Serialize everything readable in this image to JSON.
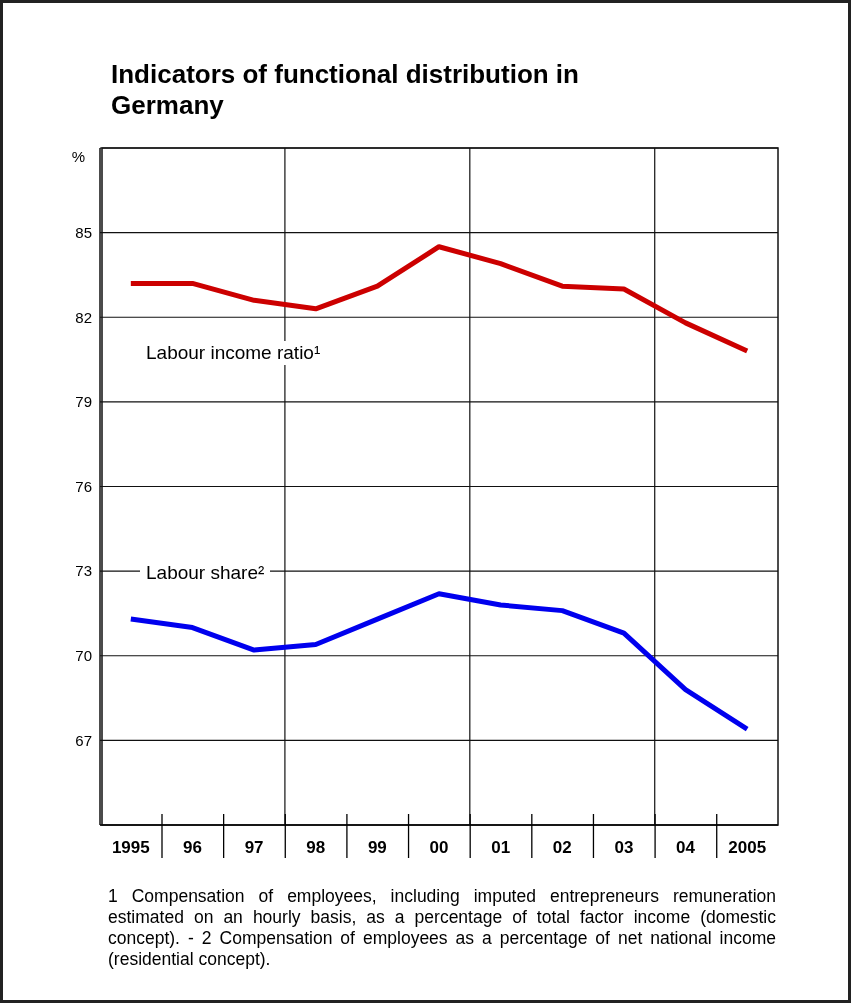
{
  "chart_data": {
    "type": "line",
    "title": "Indicators of functional distribution in Germany",
    "ylabel": "%",
    "categories": [
      "1995",
      "96",
      "97",
      "98",
      "99",
      "00",
      "01",
      "02",
      "03",
      "04",
      "2005"
    ],
    "series": [
      {
        "name": "Labour income ratio¹",
        "color": "#cc0000",
        "values": [
          83.2,
          83.2,
          82.6,
          82.3,
          83.1,
          84.5,
          83.9,
          83.1,
          83.0,
          81.8,
          80.8
        ]
      },
      {
        "name": "Labour share²",
        "color": "#0000ee",
        "values": [
          71.3,
          71.0,
          70.2,
          70.4,
          71.3,
          72.2,
          71.8,
          71.6,
          70.8,
          68.8,
          67.4
        ]
      }
    ],
    "ylim": [
      64,
      88
    ],
    "yticks": [
      67,
      70,
      73,
      76,
      79,
      82,
      85
    ],
    "grid": true,
    "legend": false,
    "marker": "none",
    "line_style": "solid",
    "annotations": [
      "1 Compensation of employees, including imputed entrepreneurs remuneration estimated on an hourly basis, as a percentage of total factor income (domestic concept). - 2 Compensation of employees as a percentage of net national income (residential concept)."
    ]
  }
}
